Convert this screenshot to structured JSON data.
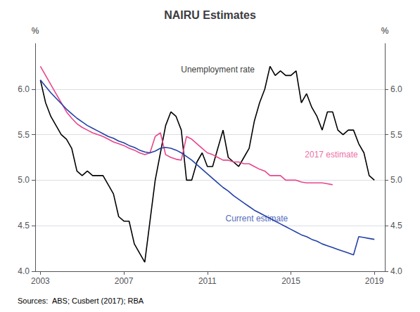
{
  "chart_data": {
    "type": "line",
    "title": "NAIRU Estimates",
    "ylabel": "%",
    "y2label": "%",
    "source": "Sources:  ABS; Cusbert (2017); RBA",
    "xlim": [
      2002.75,
      2019.5
    ],
    "xticks": [
      2003,
      2007,
      2011,
      2015,
      2019
    ],
    "ylim": [
      4.0,
      6.5
    ],
    "yticks": [
      {
        "value": 4.0,
        "label": "4.0"
      },
      4.5,
      {
        "value": 5.0,
        "label": "5.0"
      },
      5.5,
      {
        "value": 6.0,
        "label": "6.0"
      }
    ],
    "y2lim": [
      4.0,
      6.5
    ],
    "y2ticks": [
      {
        "value": 4.0,
        "label": "4.0"
      },
      4.5,
      {
        "value": 5.0,
        "label": "5.0"
      },
      5.5,
      {
        "value": 6.0,
        "label": "6.0"
      }
    ],
    "grid": "y",
    "series": [
      {
        "name": "Unemployment rate",
        "color": "#000000",
        "x": [
          2003.0,
          2003.25,
          2003.5,
          2003.75,
          2004.0,
          2004.25,
          2004.5,
          2004.75,
          2005.0,
          2005.25,
          2005.5,
          2005.75,
          2006.0,
          2006.25,
          2006.5,
          2006.75,
          2007.0,
          2007.25,
          2007.5,
          2007.75,
          2008.0,
          2008.25,
          2008.5,
          2008.75,
          2009.0,
          2009.25,
          2009.5,
          2009.75,
          2010.0,
          2010.25,
          2010.5,
          2010.75,
          2011.0,
          2011.25,
          2011.5,
          2011.75,
          2012.0,
          2012.25,
          2012.5,
          2012.75,
          2013.0,
          2013.25,
          2013.5,
          2013.75,
          2014.0,
          2014.25,
          2014.5,
          2014.75,
          2015.0,
          2015.25,
          2015.5,
          2015.75,
          2016.0,
          2016.25,
          2016.5,
          2016.75,
          2017.0,
          2017.25,
          2017.5,
          2017.75,
          2018.0,
          2018.25,
          2018.5,
          2018.75,
          2019.0
        ],
        "values": [
          6.1,
          5.85,
          5.7,
          5.6,
          5.5,
          5.45,
          5.35,
          5.1,
          5.05,
          5.1,
          5.05,
          5.05,
          5.05,
          4.95,
          4.85,
          4.6,
          4.55,
          4.55,
          4.3,
          4.2,
          4.1,
          4.55,
          5.0,
          5.3,
          5.6,
          5.75,
          5.7,
          5.55,
          5.0,
          5.0,
          5.2,
          5.3,
          5.15,
          5.15,
          5.35,
          5.55,
          5.25,
          5.2,
          5.15,
          5.25,
          5.35,
          5.65,
          5.85,
          6.0,
          6.25,
          6.15,
          6.2,
          6.15,
          6.15,
          6.2,
          5.85,
          5.95,
          5.8,
          5.7,
          5.55,
          5.75,
          5.75,
          5.55,
          5.5,
          5.55,
          5.55,
          5.4,
          5.3,
          5.05,
          5.0
        ]
      },
      {
        "name": "2017 estimate",
        "color": "#e8458b",
        "x": [
          2003.0,
          2003.25,
          2003.5,
          2003.75,
          2004.0,
          2004.25,
          2004.5,
          2004.75,
          2005.0,
          2005.25,
          2005.5,
          2005.75,
          2006.0,
          2006.25,
          2006.5,
          2006.75,
          2007.0,
          2007.25,
          2007.5,
          2007.75,
          2008.0,
          2008.25,
          2008.5,
          2008.75,
          2009.0,
          2009.25,
          2009.5,
          2009.75,
          2010.0,
          2010.25,
          2010.5,
          2010.75,
          2011.0,
          2011.25,
          2011.5,
          2011.75,
          2012.0,
          2012.25,
          2012.5,
          2012.75,
          2013.0,
          2013.25,
          2013.5,
          2013.75,
          2014.0,
          2014.25,
          2014.5,
          2014.75,
          2015.0,
          2015.25,
          2015.5,
          2015.75,
          2016.0,
          2016.25,
          2016.5,
          2016.75,
          2017.0
        ],
        "values": [
          6.25,
          6.15,
          6.05,
          5.95,
          5.85,
          5.75,
          5.68,
          5.62,
          5.58,
          5.55,
          5.52,
          5.5,
          5.48,
          5.45,
          5.42,
          5.4,
          5.38,
          5.35,
          5.33,
          5.3,
          5.28,
          5.3,
          5.48,
          5.52,
          5.28,
          5.25,
          5.23,
          5.22,
          5.48,
          5.45,
          5.4,
          5.35,
          5.3,
          5.28,
          5.25,
          5.22,
          5.22,
          5.2,
          5.2,
          5.18,
          5.18,
          5.15,
          5.12,
          5.1,
          5.05,
          5.05,
          5.05,
          5.0,
          5.0,
          5.0,
          4.98,
          4.97,
          4.97,
          4.97,
          4.97,
          4.96,
          4.95
        ]
      },
      {
        "name": "Current estimate",
        "color": "#2341a8",
        "x": [
          2003.0,
          2003.25,
          2003.5,
          2003.75,
          2004.0,
          2004.25,
          2004.5,
          2004.75,
          2005.0,
          2005.25,
          2005.5,
          2005.75,
          2006.0,
          2006.25,
          2006.5,
          2006.75,
          2007.0,
          2007.25,
          2007.5,
          2007.75,
          2008.0,
          2008.25,
          2008.5,
          2008.75,
          2009.0,
          2009.25,
          2009.5,
          2009.75,
          2010.0,
          2010.25,
          2010.5,
          2010.75,
          2011.0,
          2011.25,
          2011.5,
          2011.75,
          2012.0,
          2012.25,
          2012.5,
          2012.75,
          2013.0,
          2013.25,
          2013.5,
          2013.75,
          2014.0,
          2014.25,
          2014.5,
          2014.75,
          2015.0,
          2015.25,
          2015.5,
          2015.75,
          2016.0,
          2016.25,
          2016.5,
          2016.75,
          2017.0,
          2017.25,
          2017.5,
          2017.75,
          2018.0,
          2018.25,
          2018.5,
          2018.75,
          2019.0
        ],
        "values": [
          6.1,
          6.03,
          5.96,
          5.9,
          5.84,
          5.78,
          5.73,
          5.68,
          5.64,
          5.6,
          5.57,
          5.54,
          5.51,
          5.48,
          5.46,
          5.43,
          5.41,
          5.38,
          5.36,
          5.33,
          5.31,
          5.3,
          5.32,
          5.35,
          5.36,
          5.35,
          5.33,
          5.3,
          5.26,
          5.22,
          5.17,
          5.12,
          5.07,
          5.02,
          4.97,
          4.92,
          4.88,
          4.83,
          4.79,
          4.75,
          4.71,
          4.67,
          4.64,
          4.61,
          4.58,
          4.55,
          4.52,
          4.49,
          4.46,
          4.43,
          4.4,
          4.38,
          4.35,
          4.33,
          4.3,
          4.28,
          4.26,
          4.24,
          4.22,
          4.2,
          4.18,
          4.38,
          4.37,
          4.36,
          4.35
        ]
      }
    ],
    "annotations": [
      {
        "text": "Unemployment rate",
        "x": 2011.5,
        "y": 6.15,
        "color": "#000000"
      },
      {
        "text": "2017 estimate",
        "x": 2015.6,
        "y": 5.28,
        "color": "#e8458b"
      },
      {
        "text": "Current estimate",
        "x": 2011.8,
        "y": 4.58,
        "color": "#2341a8"
      }
    ]
  }
}
